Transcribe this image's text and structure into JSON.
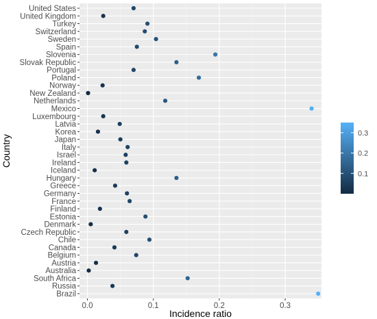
{
  "chart_data": {
    "type": "scatter",
    "xlabel": "Incidence ratio",
    "ylabel": "Country",
    "xlim": [
      -0.012,
      0.355
    ],
    "x_ticks": [
      "0.0",
      "0.1",
      "0.2",
      "0.3"
    ],
    "x_tick_values": [
      0.0,
      0.1,
      0.2,
      0.3
    ],
    "grid": true,
    "legend": {
      "type": "colorbar",
      "placement": "right",
      "range": [
        0.0,
        0.35
      ],
      "ticks": [
        "0.1",
        "0.2",
        "0.3"
      ],
      "tick_values": [
        0.1,
        0.2,
        0.3
      ],
      "color_low": "#132B43",
      "color_high": "#56B1F7"
    },
    "points": [
      {
        "country": "United States",
        "value": 0.07
      },
      {
        "country": "United Kingdom",
        "value": 0.024
      },
      {
        "country": "Turkey",
        "value": 0.091
      },
      {
        "country": "Switzerland",
        "value": 0.087
      },
      {
        "country": "Sweden",
        "value": 0.104
      },
      {
        "country": "Spain",
        "value": 0.075
      },
      {
        "country": "Slovenia",
        "value": 0.194
      },
      {
        "country": "Slovak Republic",
        "value": 0.135
      },
      {
        "country": "Portugal",
        "value": 0.07
      },
      {
        "country": "Poland",
        "value": 0.169
      },
      {
        "country": "Norway",
        "value": 0.023
      },
      {
        "country": "New Zealand",
        "value": 0.001
      },
      {
        "country": "Netherlands",
        "value": 0.118
      },
      {
        "country": "Mexico",
        "value": 0.34
      },
      {
        "country": "Luxembourg",
        "value": 0.024
      },
      {
        "country": "Latvia",
        "value": 0.049
      },
      {
        "country": "Korea",
        "value": 0.016
      },
      {
        "country": "Japan",
        "value": 0.05
      },
      {
        "country": "Italy",
        "value": 0.061
      },
      {
        "country": "Israel",
        "value": 0.058
      },
      {
        "country": "Ireland",
        "value": 0.059
      },
      {
        "country": "Iceland",
        "value": 0.011
      },
      {
        "country": "Hungary",
        "value": 0.135
      },
      {
        "country": "Greece",
        "value": 0.042
      },
      {
        "country": "Germany",
        "value": 0.06
      },
      {
        "country": "France",
        "value": 0.064
      },
      {
        "country": "Finland",
        "value": 0.019
      },
      {
        "country": "Estonia",
        "value": 0.088
      },
      {
        "country": "Denmark",
        "value": 0.005
      },
      {
        "country": "Czech Republic",
        "value": 0.059
      },
      {
        "country": "Chile",
        "value": 0.094
      },
      {
        "country": "Canada",
        "value": 0.041
      },
      {
        "country": "Belgium",
        "value": 0.074
      },
      {
        "country": "Austria",
        "value": 0.013
      },
      {
        "country": "Australia",
        "value": 0.002
      },
      {
        "country": "South Africa",
        "value": 0.152
      },
      {
        "country": "Russia",
        "value": 0.038
      },
      {
        "country": "Brazil",
        "value": 0.35
      }
    ]
  }
}
